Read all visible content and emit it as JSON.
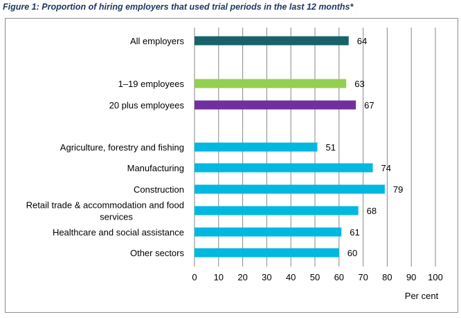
{
  "caption": "Figure 1: Proportion of hiring employers that used trial periods in the last 12 months*",
  "chart_data": {
    "type": "bar",
    "orientation": "horizontal",
    "categories": [
      "All employers",
      "1–19 employees",
      "20 plus employees",
      "Agriculture, forestry and fishing",
      "Manufacturing",
      "Construction",
      "Retail trade & accommodation and food services",
      "Healthcare and social assistance",
      "Other sectors"
    ],
    "category_lines": [
      [
        "All employers"
      ],
      [
        "1–19 employees"
      ],
      [
        "20 plus employees"
      ],
      [
        "Agriculture, forestry and fishing"
      ],
      [
        "Manufacturing"
      ],
      [
        "Construction"
      ],
      [
        "Retail trade & accommodation and food",
        "services"
      ],
      [
        "Healthcare and social assistance"
      ],
      [
        "Other sectors"
      ]
    ],
    "values": [
      64,
      63,
      67,
      51,
      74,
      79,
      68,
      61,
      60
    ],
    "data_labels": [
      "64",
      "63",
      "67",
      "51",
      "74",
      "79",
      "68",
      "61",
      "60"
    ],
    "bar_colors": [
      "#17626b",
      "#92d050",
      "#7030a0",
      "#00b8e0",
      "#00b8e0",
      "#00b8e0",
      "#00b8e0",
      "#00b8e0",
      "#00b8e0"
    ],
    "xlabel": "Per cent",
    "xlim": [
      0,
      100
    ],
    "xticks": [
      0,
      10,
      20,
      30,
      40,
      50,
      60,
      70,
      80,
      90,
      100
    ],
    "grid": true
  }
}
